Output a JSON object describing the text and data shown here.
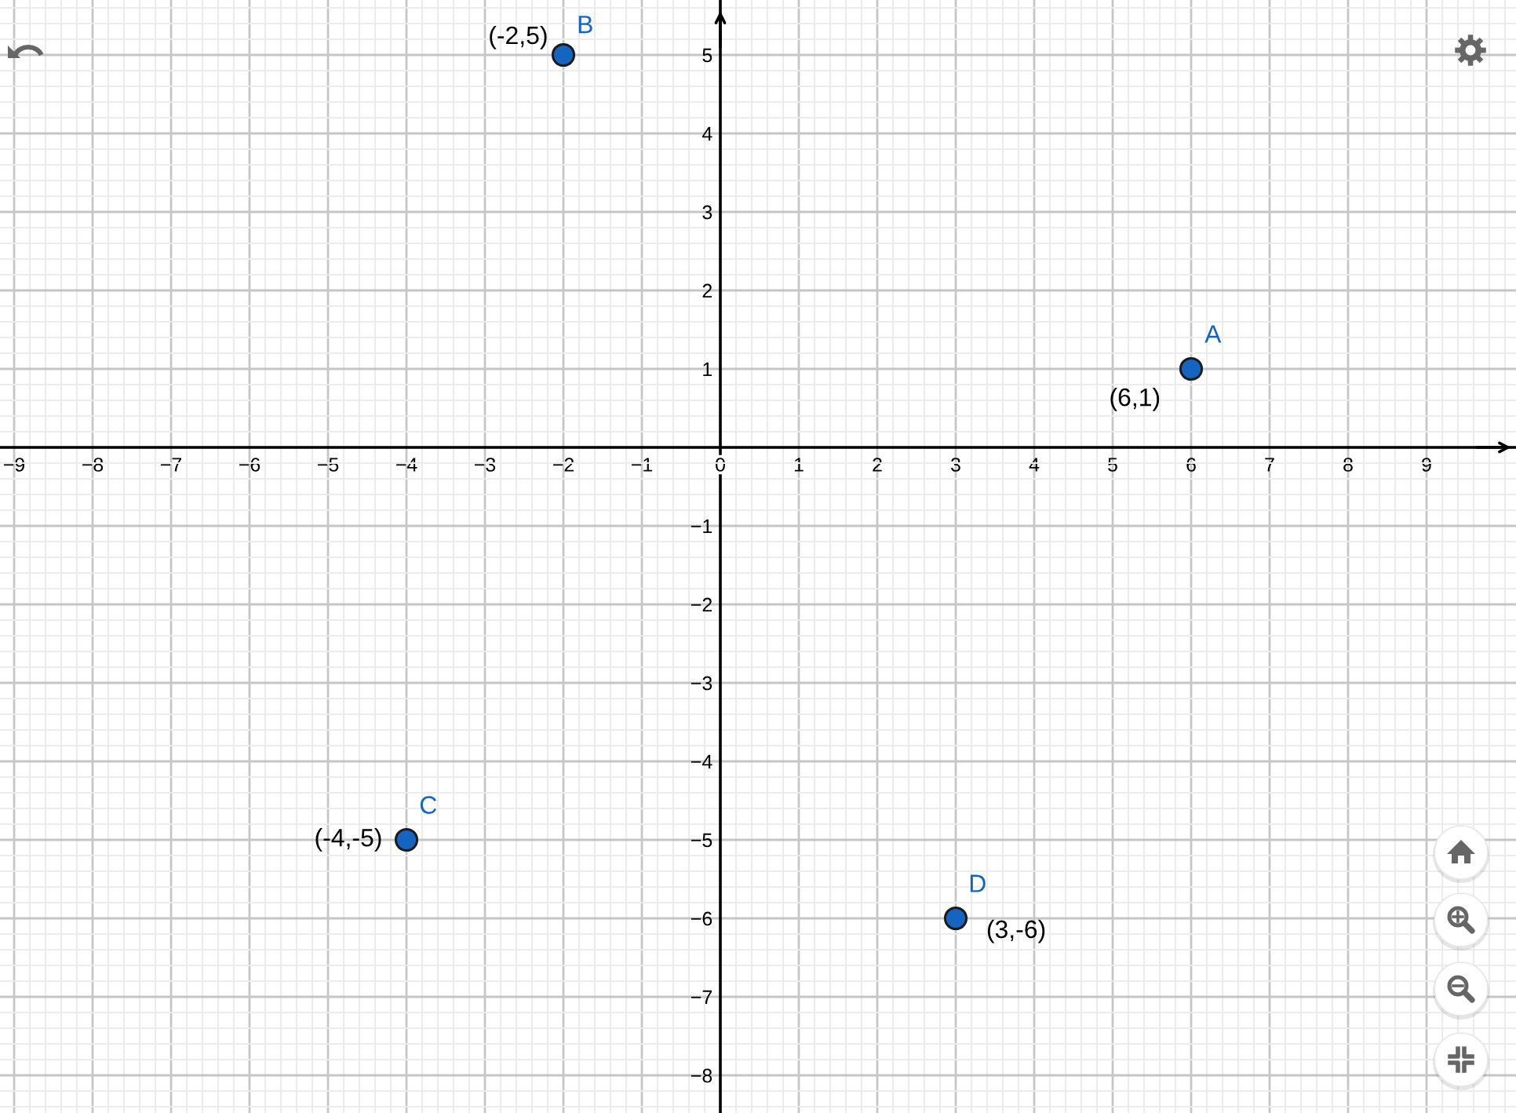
{
  "chart_data": {
    "type": "scatter",
    "x": [
      6,
      -2,
      -4,
      3
    ],
    "values": [
      1,
      5,
      -5,
      -6
    ],
    "color": "#1565c0",
    "annotations": [
      {
        "text": "A",
        "x": 6,
        "y": 1
      },
      {
        "text": "B",
        "x": -2,
        "y": 5
      },
      {
        "text": "C",
        "x": -4,
        "y": -5
      },
      {
        "text": "D",
        "x": 3,
        "y": -6
      },
      {
        "text": "(6,1)",
        "x": 6,
        "y": 1
      },
      {
        "text": "(-2,5)",
        "x": -2,
        "y": 5
      },
      {
        "text": "(-4,-5)",
        "x": -4,
        "y": -5
      },
      {
        "text": "(3,-6)",
        "x": 3,
        "y": -6
      }
    ],
    "xlim": [
      -9.18,
      10.14
    ],
    "ylim": [
      -8.48,
      5.7
    ],
    "xticks": [
      {
        "value": -9,
        "label": "−9"
      },
      {
        "value": -8,
        "label": "−8"
      },
      {
        "value": -7,
        "label": "−7"
      },
      {
        "value": -6,
        "label": "−6"
      },
      {
        "value": -5,
        "label": "−5"
      },
      {
        "value": -4,
        "label": "−4"
      },
      {
        "value": -3,
        "label": "−3"
      },
      {
        "value": -2,
        "label": "−2"
      },
      {
        "value": -1,
        "label": "−1"
      },
      0,
      1,
      2,
      3,
      4,
      5,
      6,
      7,
      8,
      9
    ],
    "yticks": [
      {
        "value": -8,
        "label": "−8"
      },
      {
        "value": -7,
        "label": "−7"
      },
      {
        "value": -6,
        "label": "−6"
      },
      {
        "value": -5,
        "label": "−5"
      },
      {
        "value": -4,
        "label": "−4"
      },
      {
        "value": -3,
        "label": "−3"
      },
      {
        "value": -2,
        "label": "−2"
      },
      {
        "value": -1,
        "label": "−1"
      },
      {
        "value": 0,
        "label": null
      },
      1,
      2,
      3,
      4,
      5
    ],
    "grid": true,
    "marker": "circle"
  }
}
